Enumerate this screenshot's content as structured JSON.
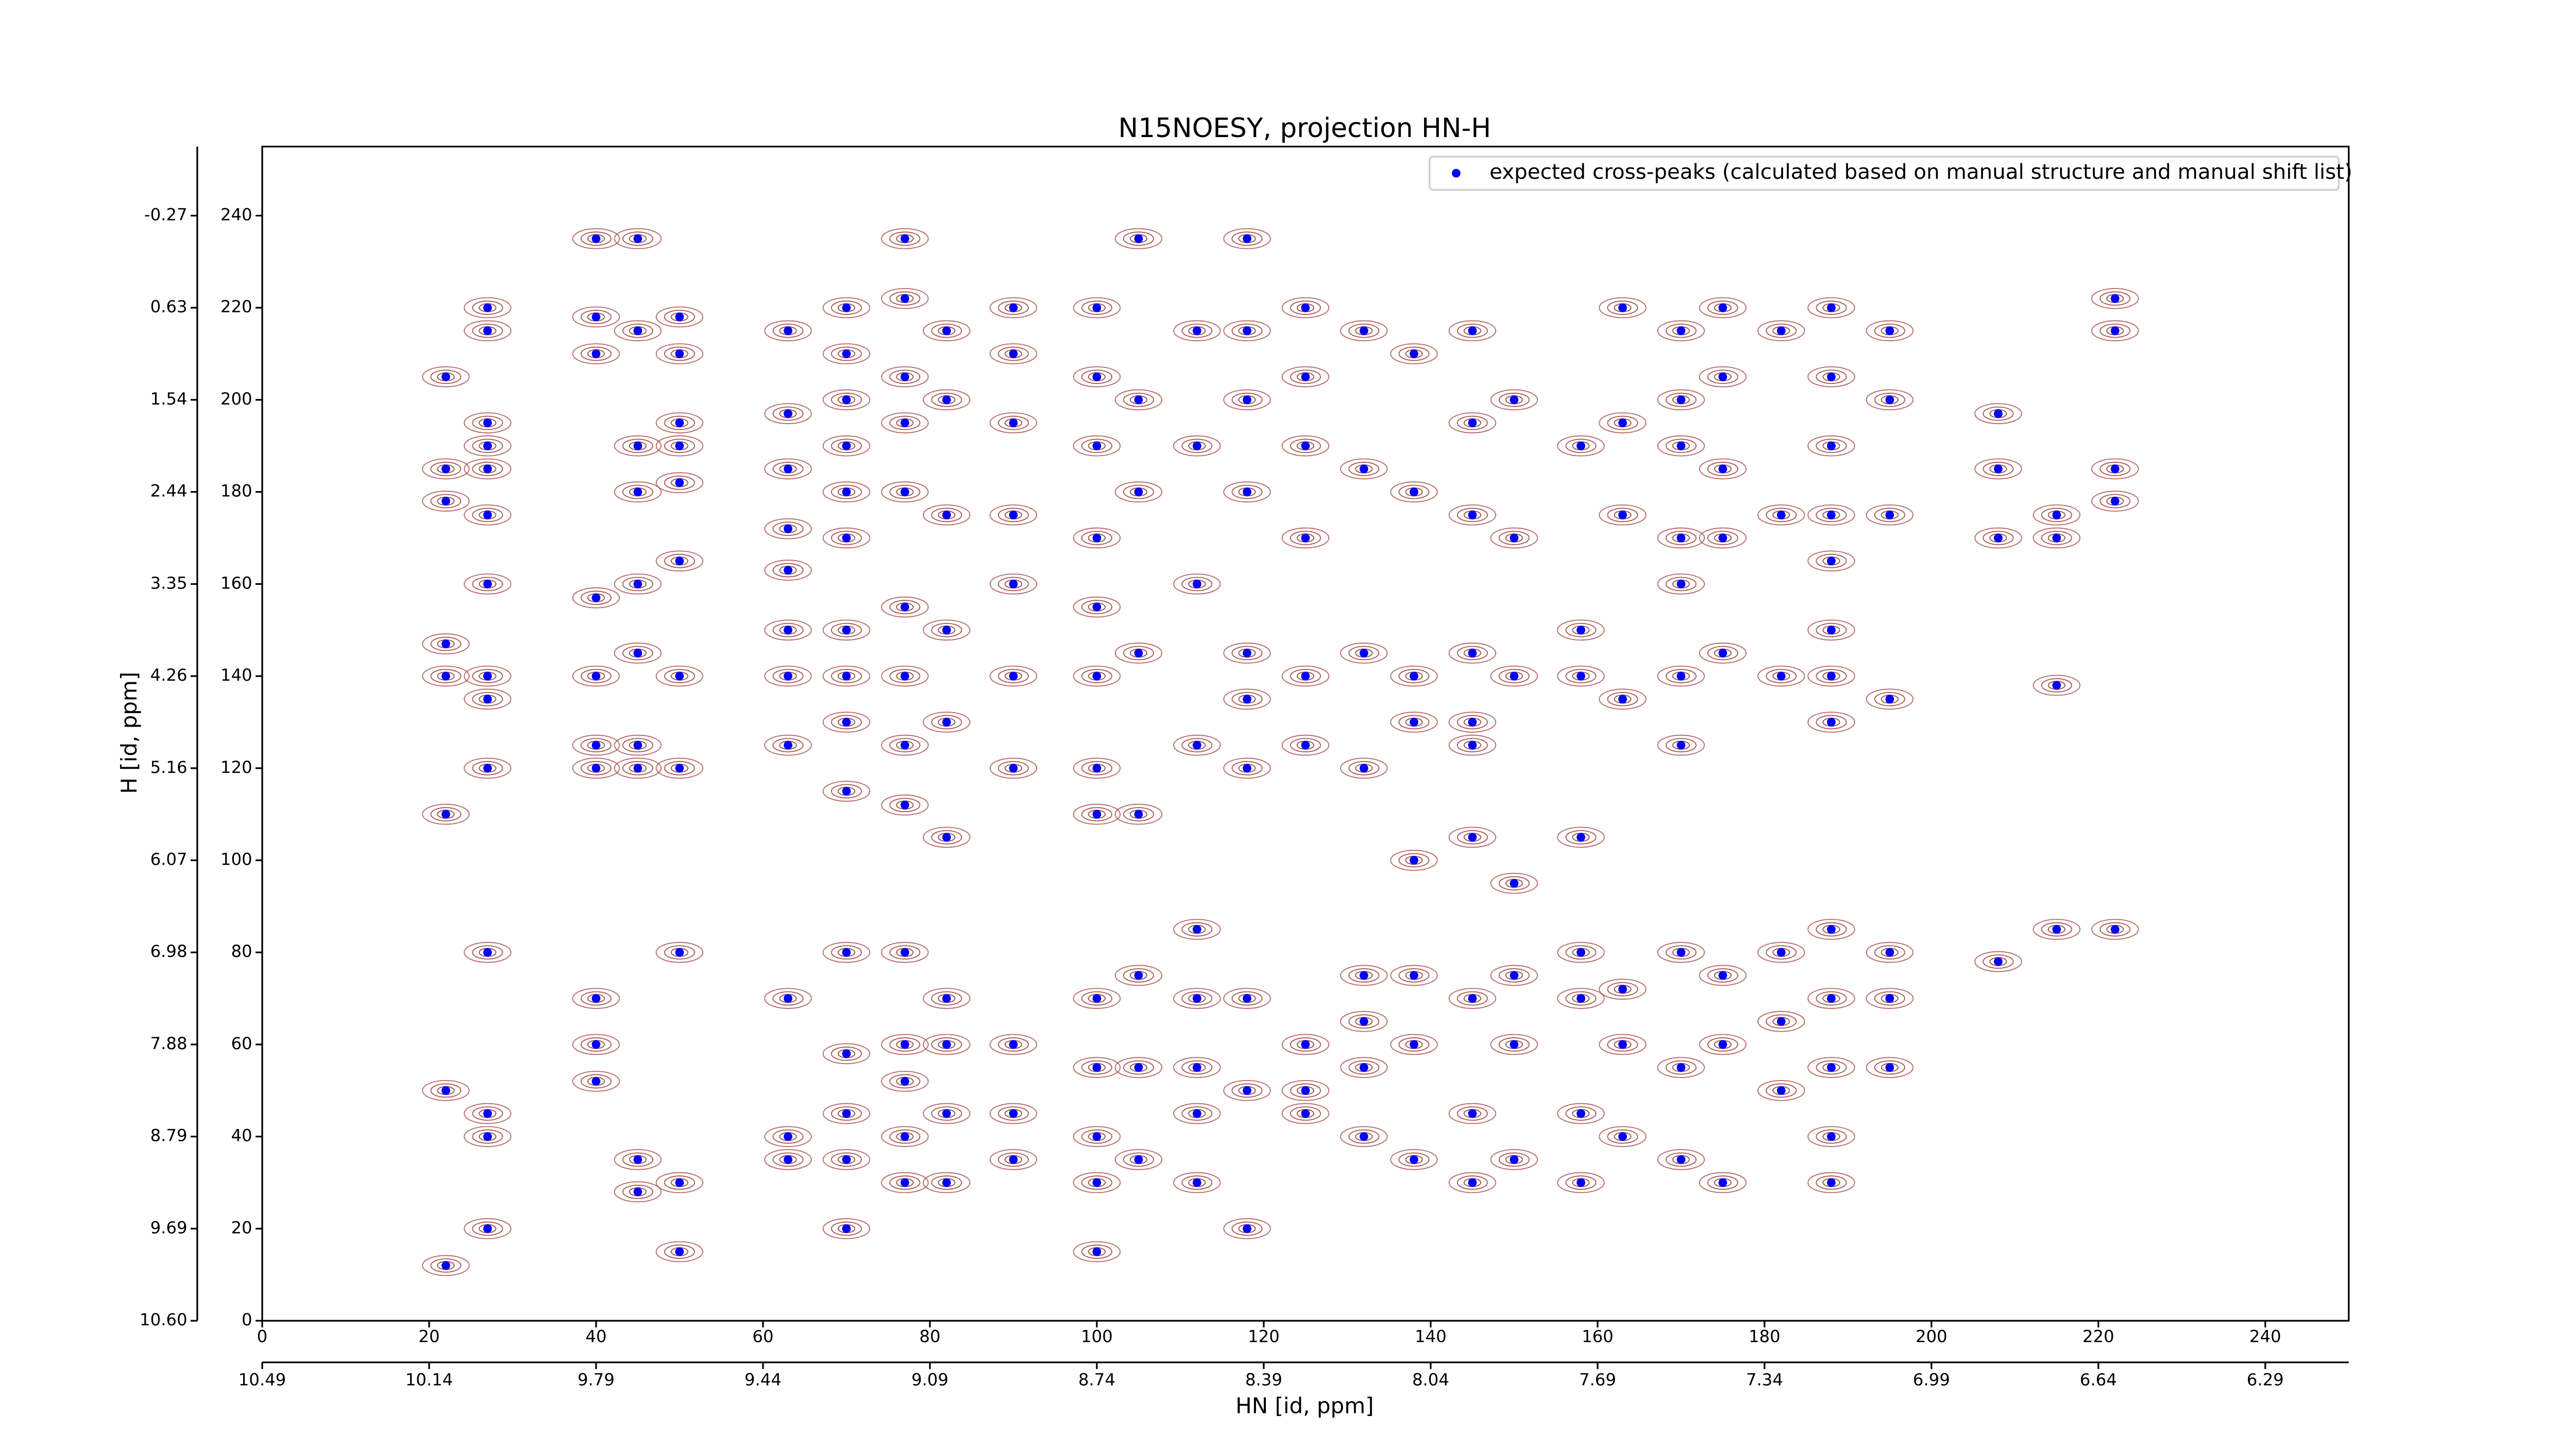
{
  "chart_data": {
    "type": "scatter",
    "title": "N15NOESY, projection HN-H",
    "xlabel": "HN [id, ppm]",
    "ylabel": "H [id, ppm]",
    "xlim": [
      0,
      250
    ],
    "ylim": [
      0,
      255
    ],
    "xticks": [
      0,
      20,
      40,
      60,
      80,
      100,
      120,
      140,
      160,
      180,
      200,
      220,
      240
    ],
    "x2ticks": [
      {
        "value": 0,
        "label": "10.49"
      },
      {
        "value": 20,
        "label": "10.14"
      },
      {
        "value": 40,
        "label": "9.79"
      },
      {
        "value": 60,
        "label": "9.44"
      },
      {
        "value": 80,
        "label": "9.09"
      },
      {
        "value": 100,
        "label": "8.74"
      },
      {
        "value": 120,
        "label": "8.39"
      },
      {
        "value": 140,
        "label": "8.04"
      },
      {
        "value": 160,
        "label": "7.69"
      },
      {
        "value": 180,
        "label": "7.34"
      },
      {
        "value": 200,
        "label": "6.99"
      },
      {
        "value": 220,
        "label": "6.64"
      },
      {
        "value": 240,
        "label": "6.29"
      }
    ],
    "yticks": [
      0,
      20,
      40,
      60,
      80,
      100,
      120,
      140,
      160,
      180,
      200,
      220,
      240
    ],
    "y2ticks": [
      {
        "value": 0,
        "label": "10.60"
      },
      {
        "value": 20,
        "label": "9.69"
      },
      {
        "value": 40,
        "label": "8.79"
      },
      {
        "value": 60,
        "label": "7.88"
      },
      {
        "value": 80,
        "label": "6.98"
      },
      {
        "value": 100,
        "label": "6.07"
      },
      {
        "value": 120,
        "label": "5.16"
      },
      {
        "value": 140,
        "label": "4.26"
      },
      {
        "value": 160,
        "label": "3.35"
      },
      {
        "value": 180,
        "label": "2.44"
      },
      {
        "value": 200,
        "label": "1.54"
      },
      {
        "value": 220,
        "label": "0.63"
      },
      {
        "value": 240,
        "label": "-0.27"
      }
    ],
    "legend": "upper right",
    "series": [
      {
        "name": "expected cross-peaks (calculated based on manual structure and manual shift list)",
        "color": "#0000ff",
        "x": [
          27,
          27,
          27,
          27,
          27,
          27,
          27,
          27,
          27,
          27,
          27,
          27,
          27,
          27,
          22,
          22,
          22,
          22,
          22,
          22,
          22,
          22,
          40,
          40,
          40,
          40,
          40,
          40,
          40,
          40,
          40,
          40,
          45,
          45,
          45,
          45,
          45,
          45,
          45,
          45,
          45,
          45,
          50,
          50,
          50,
          50,
          50,
          50,
          50,
          50,
          50,
          50,
          50,
          63,
          63,
          63,
          63,
          63,
          63,
          63,
          63,
          63,
          63,
          63,
          70,
          70,
          70,
          70,
          70,
          70,
          70,
          70,
          70,
          70,
          70,
          70,
          70,
          70,
          70,
          77,
          77,
          77,
          77,
          77,
          77,
          77,
          77,
          77,
          77,
          77,
          77,
          77,
          77,
          82,
          82,
          82,
          82,
          82,
          82,
          82,
          82,
          82,
          82,
          90,
          90,
          90,
          90,
          90,
          90,
          90,
          90,
          90,
          90,
          100,
          100,
          100,
          100,
          100,
          100,
          100,
          100,
          100,
          100,
          100,
          100,
          100,
          105,
          105,
          105,
          105,
          105,
          105,
          105,
          105,
          112,
          112,
          112,
          112,
          112,
          112,
          112,
          112,
          112,
          118,
          118,
          118,
          118,
          118,
          118,
          118,
          118,
          118,
          118,
          125,
          125,
          125,
          125,
          125,
          125,
          125,
          125,
          125,
          132,
          132,
          132,
          132,
          132,
          132,
          132,
          132,
          138,
          138,
          138,
          138,
          138,
          138,
          138,
          138,
          145,
          145,
          145,
          145,
          145,
          145,
          145,
          145,
          145,
          145,
          150,
          150,
          150,
          150,
          150,
          150,
          150,
          158,
          158,
          158,
          158,
          158,
          158,
          158,
          158,
          163,
          163,
          163,
          163,
          163,
          163,
          163,
          170,
          170,
          170,
          170,
          170,
          170,
          170,
          170,
          170,
          170,
          175,
          175,
          175,
          175,
          175,
          175,
          175,
          175,
          182,
          182,
          182,
          182,
          182,
          182,
          188,
          188,
          188,
          188,
          188,
          188,
          188,
          188,
          188,
          188,
          188,
          188,
          188,
          195,
          195,
          195,
          195,
          195,
          195,
          195,
          208,
          208,
          208,
          208,
          215,
          215,
          215,
          215,
          222,
          222,
          222,
          222,
          222
        ],
        "values": [
          220,
          215,
          195,
          190,
          185,
          175,
          160,
          140,
          135,
          120,
          80,
          45,
          40,
          20,
          205,
          185,
          178,
          147,
          140,
          110,
          50,
          12,
          235,
          218,
          210,
          157,
          140,
          125,
          120,
          70,
          60,
          52,
          235,
          215,
          190,
          180,
          160,
          145,
          125,
          120,
          35,
          28,
          218,
          210,
          195,
          190,
          182,
          165,
          140,
          120,
          80,
          30,
          15,
          215,
          197,
          185,
          172,
          163,
          150,
          140,
          125,
          70,
          40,
          35,
          220,
          210,
          200,
          190,
          180,
          170,
          150,
          140,
          130,
          115,
          80,
          58,
          45,
          35,
          20,
          235,
          222,
          205,
          195,
          180,
          155,
          140,
          125,
          112,
          80,
          60,
          52,
          40,
          30,
          215,
          200,
          175,
          150,
          130,
          105,
          70,
          60,
          45,
          30,
          220,
          210,
          195,
          175,
          160,
          140,
          120,
          60,
          45,
          35,
          220,
          205,
          190,
          170,
          155,
          140,
          120,
          110,
          70,
          55,
          40,
          30,
          15,
          235,
          200,
          180,
          145,
          110,
          75,
          55,
          35,
          215,
          190,
          160,
          125,
          85,
          70,
          55,
          45,
          30,
          235,
          215,
          200,
          180,
          145,
          135,
          120,
          70,
          50,
          20,
          220,
          205,
          190,
          170,
          140,
          125,
          60,
          50,
          45,
          215,
          185,
          145,
          120,
          75,
          65,
          55,
          40,
          210,
          180,
          140,
          130,
          100,
          75,
          60,
          35,
          215,
          195,
          175,
          145,
          130,
          125,
          105,
          70,
          45,
          30,
          200,
          170,
          140,
          95,
          75,
          60,
          35,
          190,
          150,
          140,
          105,
          80,
          70,
          45,
          30,
          220,
          195,
          175,
          135,
          72,
          60,
          40,
          215,
          200,
          190,
          170,
          160,
          140,
          125,
          80,
          55,
          35,
          220,
          205,
          185,
          170,
          145,
          75,
          60,
          30,
          215,
          175,
          140,
          80,
          65,
          50,
          220,
          205,
          190,
          175,
          165,
          150,
          140,
          130,
          85,
          70,
          55,
          40,
          30,
          215,
          200,
          175,
          135,
          80,
          70,
          55,
          197,
          185,
          170,
          78,
          175,
          170,
          138,
          85,
          222,
          215,
          185,
          178,
          85
        ]
      }
    ]
  }
}
